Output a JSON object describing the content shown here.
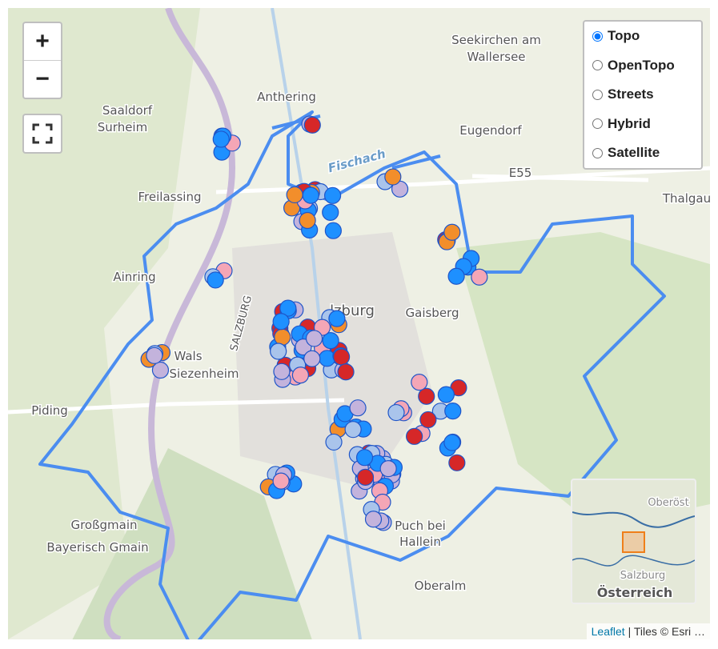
{
  "zoom": {
    "in": "+",
    "out": "−"
  },
  "layers": {
    "options": [
      "Topo",
      "OpenTopo",
      "Streets",
      "Hybrid",
      "Satellite"
    ],
    "selected": "Topo"
  },
  "places": [
    "Seekirchen am",
    "Wallersee",
    "Anthering",
    "Saaldorf",
    "Surheim",
    "Eugendorf",
    "E55",
    "Thalgau",
    "Freilassing",
    "Ainring",
    "Wals",
    "Siezenheim",
    "Piding",
    "Großgmain",
    "Bayerisch Gmain",
    "Puch bei",
    "Hallein",
    "Oberalm",
    "Fischach",
    "Gaisberg",
    "lzburg",
    "SALZBURG"
  ],
  "minimap": {
    "labels": [
      "Oberöst",
      "Salzburg",
      "Österreich"
    ]
  },
  "attribution": {
    "link": "Leaflet",
    "text": "| Tiles © Esri …"
  }
}
